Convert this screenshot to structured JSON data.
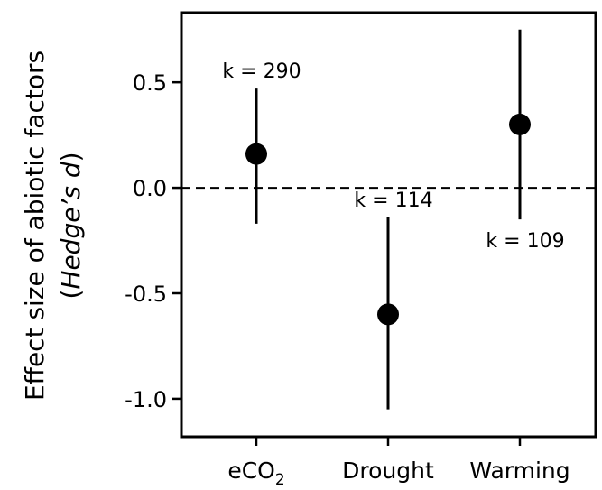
{
  "chart_data": {
    "type": "scatter",
    "title": "",
    "xlabel": "",
    "ylabel_line1": "Effect size of abiotic factors",
    "ylabel_line2_open": "(",
    "ylabel_line2_italic": "Hedge’s d",
    "ylabel_line2_close": ")",
    "categories": [
      {
        "main": "eCO",
        "sub": "2"
      },
      {
        "main": "Drought",
        "sub": ""
      },
      {
        "main": "Warming",
        "sub": ""
      }
    ],
    "points": [
      {
        "category": "eCO2",
        "mean": 0.16,
        "lower": -0.17,
        "upper": 0.47,
        "k_label": "k = 290",
        "k_position": "above"
      },
      {
        "category": "Drought",
        "mean": -0.6,
        "lower": -1.05,
        "upper": -0.14,
        "k_label": "k = 114",
        "k_position": "above"
      },
      {
        "category": "Warming",
        "mean": 0.3,
        "lower": -0.15,
        "upper": 0.75,
        "k_label": "k = 109",
        "k_position": "below"
      }
    ],
    "yticks": [
      0.5,
      0.0,
      -0.5,
      -1.0
    ],
    "ytick_labels": [
      "0.5",
      "0.0",
      "-0.5",
      "-1.0"
    ],
    "ylim": [
      -1.18,
      0.83
    ],
    "reference_line": 0.0,
    "reference_line_style": "dashed",
    "grid": false,
    "legend": "none"
  }
}
